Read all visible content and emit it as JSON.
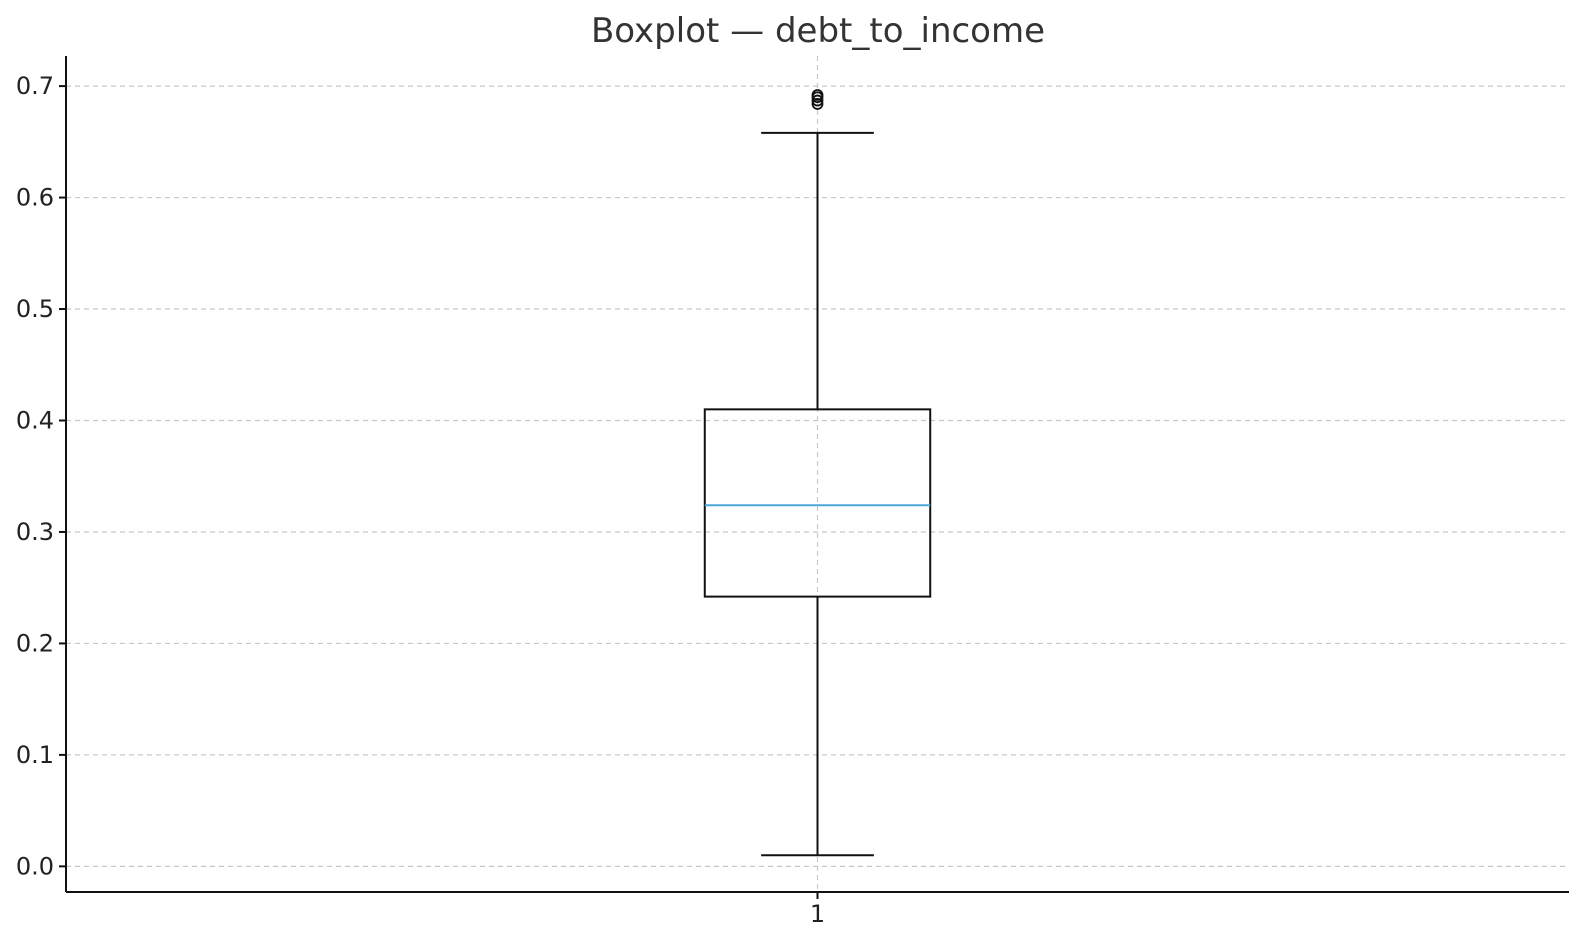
{
  "chart_data": {
    "type": "boxplot",
    "title": "Boxplot — debt_to_income",
    "xlabel": "",
    "ylabel": "",
    "categories": [
      "1"
    ],
    "series": [
      {
        "category": "1",
        "whisker_low": 0.01,
        "q1": 0.242,
        "median": 0.324,
        "q3": 0.41,
        "whisker_high": 0.658,
        "outliers": [
          0.684,
          0.687,
          0.69,
          0.692
        ]
      }
    ],
    "ylim": [
      -0.023,
      0.727
    ],
    "yticks": [
      0.0,
      0.1,
      0.2,
      0.3,
      0.4,
      0.5,
      0.6,
      0.7
    ],
    "ytick_labels": [
      "0.0",
      "0.1",
      "0.2",
      "0.3",
      "0.4",
      "0.5",
      "0.6",
      "0.7"
    ],
    "grid": true,
    "colors": {
      "median": "#4aa8db",
      "box": "#111111",
      "grid": "#c8c8c8"
    }
  }
}
